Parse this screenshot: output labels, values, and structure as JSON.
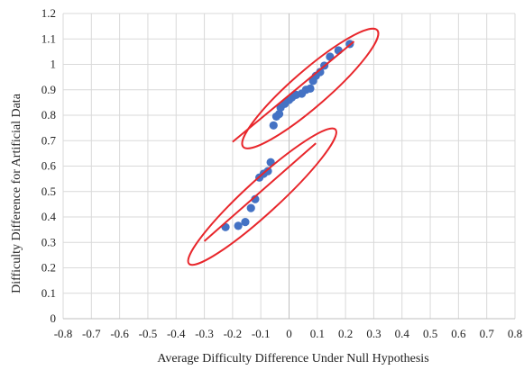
{
  "chart_data": {
    "type": "scatter",
    "title": "",
    "xlabel": "Average Difficulty Difference Under Null Hypothesis",
    "ylabel": "Difficulty  Difference for Artificial Data",
    "xlim": [
      -0.8,
      0.8
    ],
    "ylim": [
      0,
      1.2
    ],
    "x_ticks": [
      -0.8,
      -0.7,
      -0.6,
      -0.5,
      -0.4,
      -0.3,
      -0.2,
      -0.1,
      0,
      0.1,
      0.2,
      0.3,
      0.4,
      0.5,
      0.6,
      0.7,
      0.8
    ],
    "x_tick_labels": [
      "-0.8",
      "-0.7",
      "-0.6",
      "-0.5",
      "-0.4",
      "-0.3",
      "-0.2",
      "-0.1",
      "0",
      "0.1",
      "0.2",
      "0.3",
      "0.4",
      "0.5",
      "0.6",
      "0.7",
      "0.8"
    ],
    "y_ticks": [
      0,
      0.1,
      0.2,
      0.3,
      0.4,
      0.5,
      0.6,
      0.7,
      0.8,
      0.9,
      1,
      1.1,
      1.2
    ],
    "y_tick_labels": [
      "0",
      "0.1",
      "0.2",
      "0.3",
      "0.4",
      "0.5",
      "0.6",
      "0.7",
      "0.8",
      "0.9",
      "1",
      "1.1",
      "1.2"
    ],
    "grid": true,
    "legend": "none",
    "series": [
      {
        "color": "#4472C4",
        "points": [
          {
            "x": -0.225,
            "y": 0.36
          },
          {
            "x": -0.18,
            "y": 0.365
          },
          {
            "x": -0.155,
            "y": 0.38
          },
          {
            "x": -0.135,
            "y": 0.435
          },
          {
            "x": -0.12,
            "y": 0.47
          },
          {
            "x": -0.105,
            "y": 0.555
          },
          {
            "x": -0.09,
            "y": 0.57
          },
          {
            "x": -0.075,
            "y": 0.58
          },
          {
            "x": -0.065,
            "y": 0.615
          },
          {
            "x": -0.055,
            "y": 0.76
          },
          {
            "x": -0.045,
            "y": 0.795
          },
          {
            "x": -0.035,
            "y": 0.805
          },
          {
            "x": -0.03,
            "y": 0.83
          },
          {
            "x": -0.015,
            "y": 0.845
          },
          {
            "x": 0.0,
            "y": 0.86
          },
          {
            "x": 0.01,
            "y": 0.87
          },
          {
            "x": 0.025,
            "y": 0.88
          },
          {
            "x": 0.045,
            "y": 0.885
          },
          {
            "x": 0.06,
            "y": 0.9
          },
          {
            "x": 0.075,
            "y": 0.905
          },
          {
            "x": 0.085,
            "y": 0.935
          },
          {
            "x": 0.095,
            "y": 0.955
          },
          {
            "x": 0.11,
            "y": 0.97
          },
          {
            "x": 0.125,
            "y": 0.995
          },
          {
            "x": 0.145,
            "y": 1.03
          },
          {
            "x": 0.175,
            "y": 1.055
          },
          {
            "x": 0.215,
            "y": 1.08
          }
        ]
      }
    ],
    "annotation_color": "#E8262B",
    "trend_lines": [
      {
        "x1": -0.3,
        "y1": 0.305,
        "x2": 0.095,
        "y2": 0.69
      },
      {
        "x1": -0.2,
        "y1": 0.695,
        "x2": 0.23,
        "y2": 1.09
      }
    ],
    "ellipses": [
      {
        "cx": -0.095,
        "cy": 0.48,
        "rx": 0.37,
        "ry": 0.062,
        "angle_deg": 45.5
      },
      {
        "cx": 0.075,
        "cy": 0.905,
        "rx": 0.33,
        "ry": 0.067,
        "angle_deg": 44
      }
    ]
  }
}
